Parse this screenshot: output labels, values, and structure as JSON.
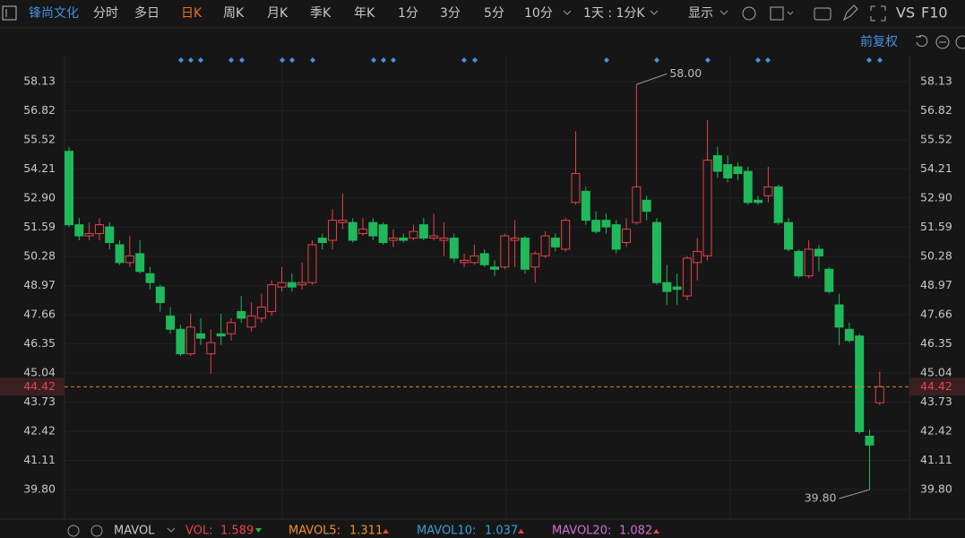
{
  "toolbar": {
    "stock": "锋尚文化",
    "tabs": [
      "分时",
      "多日",
      "日K",
      "周K",
      "月K",
      "季K",
      "年K",
      "1分",
      "3分",
      "5分",
      "10分"
    ],
    "range": "1天 : 1分K",
    "display": "显示",
    "vs": "VS",
    "f10": "F10",
    "adjust": "前复权"
  },
  "indicators": {
    "name": "MAVOL",
    "items": [
      {
        "label": "VOL:",
        "value": "1.589"
      },
      {
        "label": "MAVOL5:",
        "value": "1.311"
      },
      {
        "label": "MAVOL10:",
        "value": "1.037"
      },
      {
        "label": "MAVOL20:",
        "value": "1.082"
      }
    ]
  },
  "chart_data": {
    "type": "candlestick",
    "up_color": "#e8424a",
    "down_color": "#1fb85a",
    "ylim": [
      38.51,
      59.3
    ],
    "yticks": [
      58.13,
      56.82,
      55.52,
      54.21,
      {
        "value": 52.9,
        "label": "52.90"
      },
      51.59,
      50.28,
      48.97,
      47.66,
      46.35,
      45.04,
      43.73,
      42.42,
      41.11,
      {
        "value": 39.8,
        "label": "39.80"
      }
    ],
    "last_price": 44.42,
    "max_label": {
      "value": 58,
      "label": "58.00"
    },
    "min_label": {
      "value": 39.8,
      "label": "39.80"
    },
    "open": [
      55.0,
      51.7,
      51.2,
      51.3,
      51.6,
      50.8,
      50.0,
      50.4,
      49.5,
      48.9,
      47.6,
      47.0,
      45.9,
      46.8,
      45.9,
      46.8,
      46.8,
      47.8,
      47.1,
      47.5,
      47.8,
      48.9,
      49.1,
      49.0,
      49.1,
      51.1,
      51.0,
      51.8,
      51.8,
      51.3,
      51.8,
      51.7,
      51.0,
      51.1,
      51.1,
      51.7,
      51.1,
      51.0,
      51.1,
      50.0,
      50.0,
      50.4,
      49.8,
      49.8,
      51.0,
      51.1,
      49.8,
      50.3,
      51.1,
      50.6,
      52.7,
      53.2,
      51.9,
      51.9,
      51.7,
      50.9,
      51.8,
      52.8,
      51.8,
      49.1,
      48.9,
      48.5,
      50.0,
      50.3,
      54.8,
      54.4,
      54.3,
      54.1,
      52.8,
      53.0,
      53.4,
      51.8,
      50.5,
      49.4,
      50.6,
      49.7,
      48.1,
      47.0,
      46.7,
      42.2,
      43.7
    ],
    "high": [
      55.2,
      52.0,
      51.8,
      52.0,
      51.8,
      51.0,
      51.2,
      51.0,
      49.8,
      49.0,
      48.0,
      47.2,
      47.7,
      47.5,
      47.0,
      47.7,
      47.5,
      48.5,
      48.2,
      48.6,
      49.2,
      49.8,
      49.5,
      50.0,
      51.0,
      51.3,
      52.4,
      53.1,
      52.0,
      52.0,
      52.0,
      51.8,
      51.5,
      51.3,
      51.7,
      52.0,
      52.2,
      51.8,
      51.3,
      50.4,
      50.8,
      50.6,
      50.1,
      51.3,
      51.9,
      51.2,
      50.5,
      51.4,
      51.3,
      52.0,
      55.9,
      53.4,
      52.3,
      52.2,
      51.9,
      52.0,
      58,
      53.0,
      52.0,
      49.9,
      49.5,
      50.3,
      51.1,
      56.4,
      55.2,
      54.8,
      54.5,
      54.3,
      53.0,
      54.3,
      53.5,
      52.0,
      50.6,
      51.0,
      50.8,
      49.8,
      48.6,
      47.3,
      46.8,
      42.5,
      45.1
    ],
    "low": [
      51.6,
      51.0,
      51.0,
      51.0,
      50.6,
      49.9,
      49.8,
      49.5,
      48.8,
      47.8,
      46.8,
      45.8,
      45.8,
      46.3,
      45.0,
      46.3,
      46.5,
      47.3,
      46.9,
      47.3,
      47.6,
      48.7,
      48.7,
      48.8,
      49.0,
      50.6,
      50.6,
      51.5,
      50.9,
      51.2,
      51.0,
      50.8,
      50.7,
      50.9,
      51.0,
      51.0,
      51.0,
      50.3,
      50.0,
      49.8,
      49.9,
      49.8,
      49.4,
      49.7,
      49.8,
      49.5,
      49.1,
      50.2,
      50.5,
      50.5,
      52.6,
      51.7,
      51.3,
      51.3,
      50.4,
      50.7,
      51.7,
      51.9,
      49.0,
      48.1,
      48.1,
      48.3,
      49.2,
      50.1,
      53.8,
      53.6,
      53.7,
      52.6,
      52.6,
      52.7,
      51.7,
      50.5,
      49.3,
      49.3,
      49.6,
      48.6,
      46.3,
      46.4,
      42.3,
      39.8,
      43.6
    ],
    "close": [
      51.7,
      51.2,
      51.3,
      51.7,
      50.9,
      50.0,
      50.3,
      49.6,
      49.1,
      48.2,
      47.0,
      45.9,
      47.1,
      46.6,
      46.4,
      46.7,
      47.3,
      47.5,
      47.6,
      48.0,
      49.0,
      49.1,
      48.9,
      49.1,
      50.8,
      50.9,
      51.9,
      51.9,
      51.0,
      51.5,
      51.2,
      50.9,
      51.1,
      51.0,
      51.4,
      51.1,
      51.2,
      51.1,
      50.2,
      50.1,
      50.3,
      49.9,
      49.7,
      51.2,
      51.1,
      49.7,
      50.4,
      51.2,
      50.7,
      51.9,
      54.0,
      51.9,
      51.4,
      51.6,
      50.6,
      51.5,
      53.4,
      52.3,
      49.1,
      48.7,
      48.8,
      50.2,
      50.5,
      54.6,
      54.1,
      53.8,
      54.0,
      52.7,
      52.7,
      53.4,
      51.8,
      50.6,
      49.4,
      50.6,
      50.3,
      48.7,
      47.1,
      46.5,
      42.4,
      41.8,
      44.42
    ]
  }
}
